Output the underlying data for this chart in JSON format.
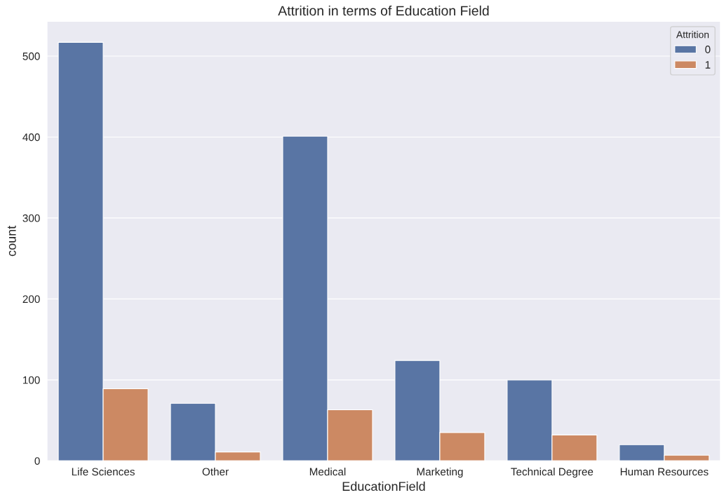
{
  "chart_data": {
    "type": "bar",
    "title": "Attrition in terms of Education Field",
    "xlabel": "EducationField",
    "ylabel": "count",
    "legend_title": "Attrition",
    "categories": [
      "Life Sciences",
      "Other",
      "Medical",
      "Marketing",
      "Technical Degree",
      "Human Resources"
    ],
    "series": [
      {
        "name": "0",
        "color": "#5975a4",
        "values": [
          517,
          71,
          401,
          124,
          100,
          20
        ]
      },
      {
        "name": "1",
        "color": "#cc8963",
        "values": [
          89,
          11,
          63,
          35,
          32,
          7
        ]
      }
    ],
    "ylim": [
      0,
      543
    ],
    "yticks": [
      0,
      100,
      200,
      300,
      400,
      500
    ],
    "grid": "y",
    "legend": "top right"
  }
}
